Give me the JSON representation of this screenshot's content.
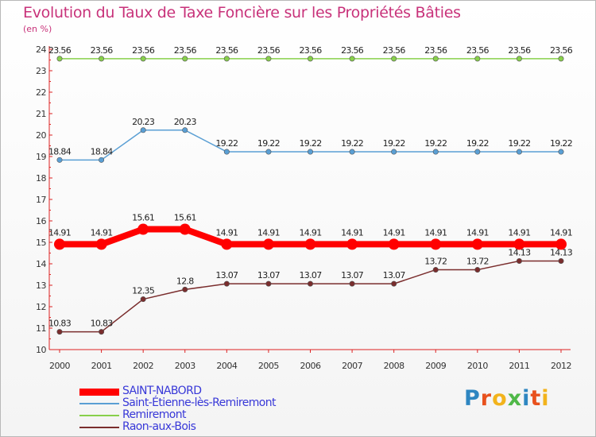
{
  "title": "Evolution du Taux de Taxe Foncière sur les Propriétés Bâties",
  "unit_label": "(en %)",
  "brand": {
    "text": "Proxiti",
    "letter_colors": [
      "#2e86c1",
      "#e8511d",
      "#f2b31c",
      "#4fb848",
      "#2e86c1",
      "#e8511d",
      "#f2b31c"
    ]
  },
  "chart_data": {
    "type": "line",
    "title": "Evolution du Taux de Taxe Foncière sur les Propriétés Bâties",
    "ylabel": "(en %)",
    "xlabel": "",
    "x": [
      "2000",
      "2001",
      "2002",
      "2003",
      "2004",
      "2005",
      "2006",
      "2007",
      "2008",
      "2009",
      "2010",
      "2011",
      "2012"
    ],
    "ylim": [
      10,
      24
    ],
    "yticks": [
      "10",
      "11",
      "12",
      "13",
      "14",
      "15",
      "16",
      "17",
      "18",
      "19",
      "20",
      "21",
      "22",
      "23",
      "24"
    ],
    "grid": false,
    "legend_position": "bottom-left",
    "series": [
      {
        "name": "SAINT-NABORD",
        "color": "#ff0000",
        "values": [
          14.91,
          14.91,
          15.61,
          15.61,
          14.91,
          14.91,
          14.91,
          14.91,
          14.91,
          14.91,
          14.91,
          14.91,
          14.91
        ],
        "labels": [
          "14.91",
          "14.91",
          "15.61",
          "15.61",
          "14.91",
          "14.91",
          "14.91",
          "14.91",
          "14.91",
          "14.91",
          "14.91",
          "14.91",
          "14.91"
        ]
      },
      {
        "name": "Saint-Étienne-lès-Remiremont",
        "color": "#5a9fd4",
        "values": [
          18.84,
          18.84,
          20.23,
          20.23,
          19.22,
          19.22,
          19.22,
          19.22,
          19.22,
          19.22,
          19.22,
          19.22,
          19.22
        ],
        "labels": [
          "18.84",
          "18.84",
          "20.23",
          "20.23",
          "19.22",
          "19.22",
          "19.22",
          "19.22",
          "19.22",
          "19.22",
          "19.22",
          "19.22",
          "19.22"
        ]
      },
      {
        "name": "Remiremont",
        "color": "#88d04b",
        "values": [
          23.56,
          23.56,
          23.56,
          23.56,
          23.56,
          23.56,
          23.56,
          23.56,
          23.56,
          23.56,
          23.56,
          23.56,
          23.56
        ],
        "labels": [
          "23.56",
          "23.56",
          "23.56",
          "23.56",
          "23.56",
          "23.56",
          "23.56",
          "23.56",
          "23.56",
          "23.56",
          "23.56",
          "23.56",
          "23.56"
        ]
      },
      {
        "name": "Raon-aux-Bois",
        "color": "#7a2d2d",
        "values": [
          10.83,
          10.83,
          12.35,
          12.8,
          13.07,
          13.07,
          13.07,
          13.07,
          13.07,
          13.72,
          13.72,
          14.13,
          14.13
        ],
        "labels": [
          "10.83",
          "10.83",
          "12.35",
          "12.8",
          "13.07",
          "13.07",
          "13.07",
          "13.07",
          "13.07",
          "13.72",
          "13.72",
          "14.13",
          "14.13"
        ]
      }
    ]
  }
}
